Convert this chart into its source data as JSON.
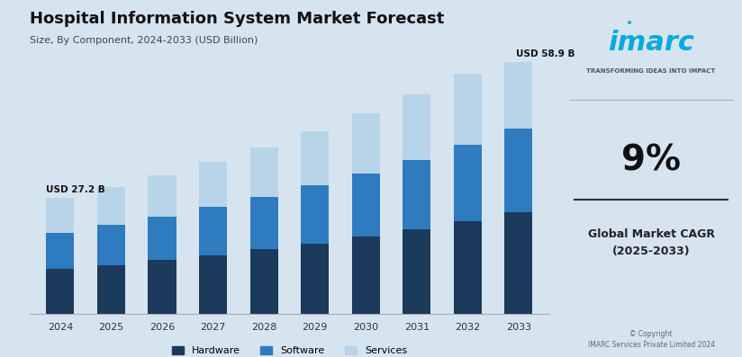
{
  "title": "Hospital Information System Market Forecast",
  "subtitle": "Size, By Component, 2024-2033 (USD Billion)",
  "years": [
    2024,
    2025,
    2026,
    2027,
    2028,
    2029,
    2030,
    2031,
    2032,
    2033
  ],
  "hardware": [
    10.5,
    11.5,
    12.6,
    13.8,
    15.1,
    16.5,
    18.1,
    19.8,
    21.7,
    23.8
  ],
  "software": [
    8.5,
    9.3,
    10.2,
    11.2,
    12.3,
    13.5,
    14.8,
    16.2,
    17.8,
    19.5
  ],
  "services": [
    8.2,
    8.9,
    9.7,
    10.6,
    11.6,
    12.7,
    13.9,
    15.2,
    16.7,
    15.6
  ],
  "total_2024": "USD 27.2 B",
  "total_2033": "USD 58.9 B",
  "bar_color_hardware": "#1b3a5c",
  "bar_color_software": "#2e7bbf",
  "bar_color_services": "#b8d4e8",
  "bg_color": "#d6e4f0",
  "cagr_value": "9%",
  "cagr_label": "Global Market CAGR\n(2025-2033)",
  "copyright": "© Copyright\nIMARC Services Private Limited 2024",
  "ylim": [
    0,
    65
  ]
}
